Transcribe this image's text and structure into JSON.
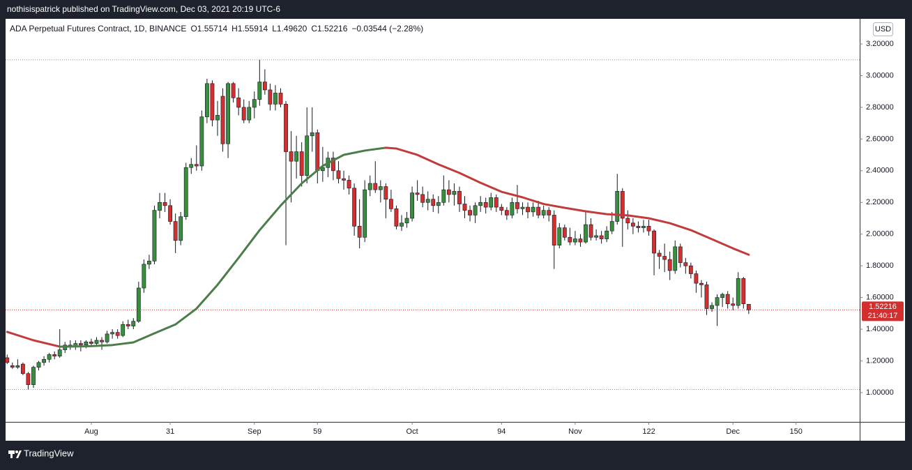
{
  "header": {
    "publisher": "nothisispatrick published on TradingView.com, Dec 03, 2021 20:19 UTC-6"
  },
  "chart_data": {
    "type": "candlestick",
    "legend": {
      "symbol": "ADA Perpetual Futures Contract, 1D, BINANCE",
      "items": [
        {
          "key": "O",
          "value": "1.55714"
        },
        {
          "key": "H",
          "value": "1.55914"
        },
        {
          "key": "L",
          "value": "1.49620"
        },
        {
          "key": "C",
          "value": "1.52216"
        }
      ],
      "change": "−0.03544 (−2.28%)"
    },
    "currency": "USD",
    "up_color": "#388e3c",
    "down_color": "#d32f2f",
    "candles": [
      [
        1.22,
        1.24,
        1.18,
        1.19
      ],
      [
        1.17,
        1.19,
        1.15,
        1.16
      ],
      [
        1.16,
        1.21,
        1.15,
        1.17
      ],
      [
        1.18,
        1.19,
        1.11,
        1.12
      ],
      [
        1.12,
        1.13,
        1.02,
        1.05
      ],
      [
        1.05,
        1.17,
        1.03,
        1.16
      ],
      [
        1.16,
        1.2,
        1.14,
        1.19
      ],
      [
        1.19,
        1.23,
        1.17,
        1.21
      ],
      [
        1.21,
        1.25,
        1.19,
        1.24
      ],
      [
        1.24,
        1.26,
        1.21,
        1.23
      ],
      [
        1.23,
        1.4,
        1.22,
        1.27
      ],
      [
        1.27,
        1.32,
        1.25,
        1.3
      ],
      [
        1.3,
        1.33,
        1.27,
        1.29
      ],
      [
        1.29,
        1.33,
        1.27,
        1.31
      ],
      [
        1.31,
        1.33,
        1.26,
        1.3
      ],
      [
        1.3,
        1.33,
        1.28,
        1.32
      ],
      [
        1.32,
        1.34,
        1.29,
        1.31
      ],
      [
        1.31,
        1.35,
        1.29,
        1.33
      ],
      [
        1.33,
        1.35,
        1.27,
        1.32
      ],
      [
        1.32,
        1.39,
        1.31,
        1.37
      ],
      [
        1.37,
        1.4,
        1.34,
        1.38
      ],
      [
        1.38,
        1.4,
        1.34,
        1.36
      ],
      [
        1.36,
        1.45,
        1.35,
        1.43
      ],
      [
        1.43,
        1.46,
        1.4,
        1.42
      ],
      [
        1.42,
        1.47,
        1.4,
        1.45
      ],
      [
        1.45,
        1.7,
        1.44,
        1.66
      ],
      [
        1.66,
        1.84,
        1.63,
        1.81
      ],
      [
        1.81,
        1.87,
        1.78,
        1.83
      ],
      [
        1.83,
        2.18,
        1.81,
        2.15
      ],
      [
        2.15,
        2.26,
        2.1,
        2.2
      ],
      [
        2.2,
        2.26,
        2.14,
        2.18
      ],
      [
        2.18,
        2.22,
        2.06,
        2.08
      ],
      [
        2.08,
        2.13,
        1.88,
        1.96
      ],
      [
        1.96,
        2.14,
        1.93,
        2.11
      ],
      [
        2.11,
        2.45,
        2.09,
        2.42
      ],
      [
        2.42,
        2.48,
        2.38,
        2.44
      ],
      [
        2.44,
        2.56,
        2.4,
        2.43
      ],
      [
        2.43,
        2.78,
        2.4,
        2.74
      ],
      [
        2.74,
        2.98,
        2.7,
        2.95
      ],
      [
        2.95,
        2.97,
        2.68,
        2.72
      ],
      [
        2.72,
        2.84,
        2.62,
        2.75
      ],
      [
        2.87,
        2.92,
        2.52,
        2.57
      ],
      [
        2.57,
        2.96,
        2.48,
        2.95
      ],
      [
        2.95,
        2.96,
        2.83,
        2.86
      ],
      [
        2.86,
        2.92,
        2.75,
        2.8
      ],
      [
        2.8,
        2.85,
        2.7,
        2.72
      ],
      [
        2.72,
        2.84,
        2.7,
        2.8
      ],
      [
        2.8,
        2.9,
        2.73,
        2.85
      ],
      [
        2.85,
        3.1,
        2.81,
        2.96
      ],
      [
        2.96,
        3.04,
        2.88,
        2.91
      ],
      [
        2.91,
        2.95,
        2.78,
        2.82
      ],
      [
        2.82,
        2.94,
        2.78,
        2.89
      ],
      [
        2.89,
        2.92,
        2.8,
        2.82
      ],
      [
        2.82,
        2.84,
        1.93,
        2.52
      ],
      [
        2.52,
        2.65,
        2.2,
        2.46
      ],
      [
        2.46,
        2.62,
        2.35,
        2.52
      ],
      [
        2.52,
        2.58,
        2.3,
        2.37
      ],
      [
        2.37,
        2.8,
        2.32,
        2.62
      ],
      [
        2.62,
        2.8,
        2.52,
        2.64
      ],
      [
        2.64,
        2.66,
        2.32,
        2.4
      ],
      [
        2.4,
        2.55,
        2.33,
        2.42
      ],
      [
        2.42,
        2.52,
        2.36,
        2.48
      ],
      [
        2.48,
        2.52,
        2.34,
        2.4
      ],
      [
        2.4,
        2.46,
        2.32,
        2.35
      ],
      [
        2.35,
        2.4,
        2.28,
        2.34
      ],
      [
        2.34,
        2.37,
        2.25,
        2.29
      ],
      [
        2.29,
        2.32,
        1.99,
        2.05
      ],
      [
        2.05,
        2.22,
        1.91,
        1.98
      ],
      [
        1.98,
        2.34,
        1.95,
        2.28
      ],
      [
        2.28,
        2.37,
        2.24,
        2.32
      ],
      [
        2.32,
        2.46,
        2.26,
        2.28
      ],
      [
        2.28,
        2.34,
        2.2,
        2.3
      ],
      [
        2.3,
        2.32,
        2.1,
        2.22
      ],
      [
        2.22,
        2.28,
        2.14,
        2.16
      ],
      [
        2.16,
        2.18,
        2.03,
        2.05
      ],
      [
        2.05,
        2.12,
        2.02,
        2.07
      ],
      [
        2.07,
        2.14,
        2.04,
        2.1
      ],
      [
        2.1,
        2.3,
        2.08,
        2.26
      ],
      [
        2.26,
        2.34,
        2.21,
        2.25
      ],
      [
        2.25,
        2.3,
        2.17,
        2.2
      ],
      [
        2.2,
        2.27,
        2.15,
        2.22
      ],
      [
        2.22,
        2.25,
        2.14,
        2.18
      ],
      [
        2.18,
        2.24,
        2.13,
        2.2
      ],
      [
        2.2,
        2.37,
        2.18,
        2.28
      ],
      [
        2.28,
        2.34,
        2.2,
        2.25
      ],
      [
        2.25,
        2.32,
        2.18,
        2.27
      ],
      [
        2.27,
        2.3,
        2.14,
        2.19
      ],
      [
        2.19,
        2.24,
        2.1,
        2.15
      ],
      [
        2.15,
        2.18,
        2.08,
        2.12
      ],
      [
        2.12,
        2.2,
        2.07,
        2.18
      ],
      [
        2.18,
        2.24,
        2.14,
        2.2
      ],
      [
        2.2,
        2.23,
        2.13,
        2.17
      ],
      [
        2.17,
        2.26,
        2.15,
        2.23
      ],
      [
        2.23,
        2.25,
        2.14,
        2.17
      ],
      [
        2.17,
        2.19,
        2.12,
        2.15
      ],
      [
        2.15,
        2.17,
        2.09,
        2.12
      ],
      [
        2.12,
        2.23,
        2.1,
        2.2
      ],
      [
        2.2,
        2.31,
        2.13,
        2.16
      ],
      [
        2.16,
        2.2,
        2.12,
        2.17
      ],
      [
        2.17,
        2.2,
        2.1,
        2.14
      ],
      [
        2.14,
        2.2,
        2.11,
        2.17
      ],
      [
        2.17,
        2.21,
        2.1,
        2.12
      ],
      [
        2.12,
        2.18,
        2.1,
        2.15
      ],
      [
        2.15,
        2.17,
        2.08,
        2.12
      ],
      [
        2.12,
        2.15,
        1.78,
        1.93
      ],
      [
        1.93,
        2.07,
        1.91,
        2.04
      ],
      [
        2.04,
        2.06,
        1.96,
        1.98
      ],
      [
        1.98,
        2.04,
        1.93,
        1.95
      ],
      [
        1.95,
        2.02,
        1.93,
        1.97
      ],
      [
        1.97,
        2.0,
        1.92,
        1.95
      ],
      [
        1.95,
        2.15,
        1.94,
        2.06
      ],
      [
        2.06,
        2.1,
        1.96,
        1.98
      ],
      [
        1.98,
        2.03,
        1.96,
        1.99
      ],
      [
        1.99,
        2.02,
        1.94,
        1.97
      ],
      [
        1.97,
        2.05,
        1.95,
        2.02
      ],
      [
        2.02,
        2.14,
        2.0,
        2.08
      ],
      [
        2.08,
        2.38,
        2.06,
        2.27
      ],
      [
        2.27,
        2.29,
        1.92,
        2.1
      ],
      [
        2.1,
        2.15,
        2.03,
        2.07
      ],
      [
        2.07,
        2.1,
        2.0,
        2.05
      ],
      [
        2.05,
        2.08,
        2.01,
        2.04
      ],
      [
        2.04,
        2.09,
        2.01,
        2.05
      ],
      [
        2.05,
        2.09,
        1.99,
        2.02
      ],
      [
        2.02,
        2.03,
        1.74,
        1.88
      ],
      [
        1.88,
        1.9,
        1.78,
        1.86
      ],
      [
        1.86,
        1.94,
        1.76,
        1.84
      ],
      [
        1.84,
        1.89,
        1.71,
        1.77
      ],
      [
        1.77,
        1.96,
        1.75,
        1.92
      ],
      [
        1.92,
        1.94,
        1.79,
        1.82
      ],
      [
        1.82,
        1.85,
        1.75,
        1.8
      ],
      [
        1.8,
        1.82,
        1.72,
        1.75
      ],
      [
        1.75,
        1.77,
        1.63,
        1.69
      ],
      [
        1.69,
        1.71,
        1.6,
        1.68
      ],
      [
        1.68,
        1.7,
        1.49,
        1.53
      ],
      [
        1.53,
        1.57,
        1.51,
        1.55
      ],
      [
        1.55,
        1.62,
        1.42,
        1.6
      ],
      [
        1.6,
        1.63,
        1.54,
        1.62
      ],
      [
        1.62,
        1.64,
        1.53,
        1.56
      ],
      [
        1.56,
        1.6,
        1.52,
        1.55
      ],
      [
        1.55,
        1.76,
        1.53,
        1.72
      ],
      [
        1.72,
        1.73,
        1.53,
        1.56
      ],
      [
        1.55714,
        1.55914,
        1.4962,
        1.52216
      ]
    ],
    "ma": {
      "x": [
        0,
        5,
        10,
        15,
        20,
        24,
        28,
        32,
        36,
        40,
        44,
        48,
        52,
        56,
        60,
        64,
        68,
        72,
        74,
        78,
        82,
        86,
        90,
        94,
        98,
        102,
        106,
        110,
        114,
        118,
        122,
        126,
        130,
        134,
        138,
        141
      ],
      "values": [
        1.383,
        1.33,
        1.29,
        1.292,
        1.3,
        1.317,
        1.374,
        1.43,
        1.53,
        1.68,
        1.85,
        2.025,
        2.18,
        2.32,
        2.43,
        2.5,
        2.527,
        2.545,
        2.54,
        2.5,
        2.44,
        2.386,
        2.324,
        2.267,
        2.232,
        2.19,
        2.166,
        2.144,
        2.126,
        2.118,
        2.1,
        2.069,
        2.025,
        1.968,
        1.91,
        1.87
      ],
      "up_color": "#4a7d4a",
      "down_color": "#c23b3b"
    },
    "xlim": [
      -0.3,
      162.1
    ],
    "xticks": [
      {
        "value": 16,
        "label": "Aug"
      },
      31,
      {
        "value": 47,
        "label": "Sep"
      },
      59,
      {
        "value": 77,
        "label": "Oct"
      },
      94,
      {
        "value": 108,
        "label": "Nov"
      },
      122,
      {
        "value": 138,
        "label": "Dec"
      },
      150
    ],
    "ylim": [
      0.8152,
      3.3584
    ],
    "yticks": [
      {
        "value": 1.0,
        "label": "1.00000"
      },
      {
        "value": 1.2,
        "label": "1.20000"
      },
      {
        "value": 1.4,
        "label": "1.40000"
      },
      {
        "value": 1.6,
        "label": "1.60000"
      },
      {
        "value": 1.8,
        "label": "1.80000"
      },
      {
        "value": 2.0,
        "label": "2.00000"
      },
      {
        "value": 2.2,
        "label": "2.20000"
      },
      {
        "value": 2.4,
        "label": "2.40000"
      },
      {
        "value": 2.6,
        "label": "2.60000"
      },
      {
        "value": 2.8,
        "label": "2.80000"
      },
      {
        "value": 3.0,
        "label": "3.00000"
      },
      {
        "value": 3.2,
        "label": "3.20000"
      }
    ],
    "last_price": {
      "value": 1.52216,
      "label": "1.52216"
    },
    "countdown": "21:40:17"
  },
  "footer": {
    "brand": "TradingView"
  }
}
